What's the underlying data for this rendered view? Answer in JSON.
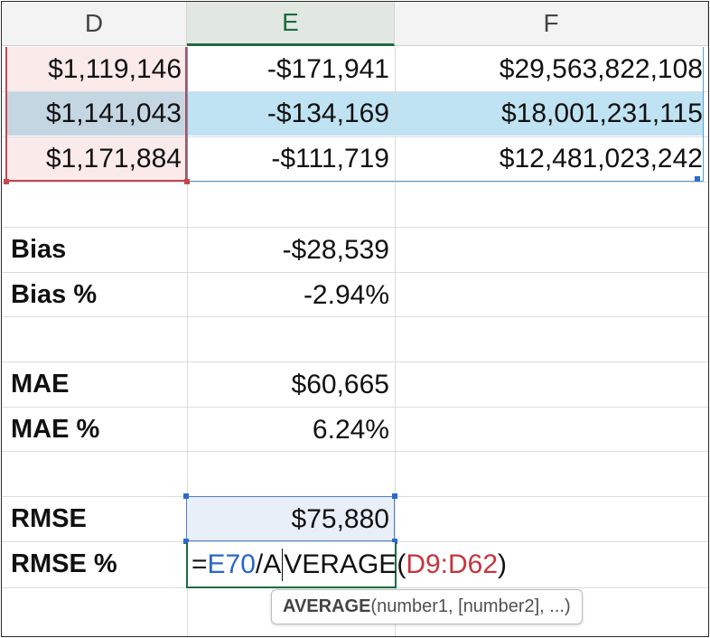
{
  "columns": [
    {
      "label": "D",
      "selected": false
    },
    {
      "label": "E",
      "selected": true
    },
    {
      "label": "F",
      "selected": false
    }
  ],
  "data_rows": [
    {
      "d": "$1,119,146",
      "e": "-$171,941",
      "f": "$29,563,822,108"
    },
    {
      "d": "$1,141,043",
      "e": "-$134,169",
      "f": "$18,001,231,115"
    },
    {
      "d": "$1,171,884",
      "e": "-$111,719",
      "f": "$12,481,023,242"
    }
  ],
  "metrics": {
    "bias": {
      "label": "Bias",
      "value": "-$28,539"
    },
    "bias_pct": {
      "label": "Bias %",
      "value": "-2.94%"
    },
    "mae": {
      "label": "MAE",
      "value": "$60,665"
    },
    "mae_pct": {
      "label": "MAE %",
      "value": "6.24%"
    },
    "rmse": {
      "label": "RMSE",
      "value": "$75,880"
    },
    "rmse_pct": {
      "label": "RMSE %"
    }
  },
  "formula": {
    "prefix": "=",
    "ref1": "E70",
    "op_before_caret": "/A",
    "op_after_caret": "VERAGE(",
    "ref2": "D9:D62",
    "suffix": ")"
  },
  "tooltip": {
    "function_name": "AVERAGE",
    "args": "(number1, [number2], ...)"
  },
  "colors": {
    "header_bg": "#f3f3f3",
    "selected_header": "#1e6b3f",
    "ref_blue": "#2b67c9",
    "ref_red": "#c4353d",
    "selected_row": "#bfe3f2"
  }
}
